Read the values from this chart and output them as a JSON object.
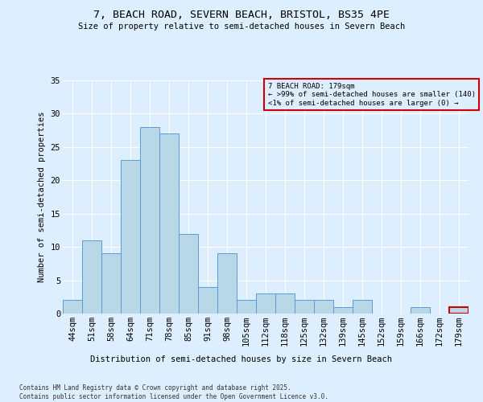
{
  "title_line1": "7, BEACH ROAD, SEVERN BEACH, BRISTOL, BS35 4PE",
  "title_line2": "Size of property relative to semi-detached houses in Severn Beach",
  "xlabel": "Distribution of semi-detached houses by size in Severn Beach",
  "ylabel": "Number of semi-detached properties",
  "categories": [
    "44sqm",
    "51sqm",
    "58sqm",
    "64sqm",
    "71sqm",
    "78sqm",
    "85sqm",
    "91sqm",
    "98sqm",
    "105sqm",
    "112sqm",
    "118sqm",
    "125sqm",
    "132sqm",
    "139sqm",
    "145sqm",
    "152sqm",
    "159sqm",
    "166sqm",
    "172sqm",
    "179sqm"
  ],
  "values": [
    2,
    11,
    9,
    23,
    28,
    27,
    12,
    4,
    9,
    2,
    3,
    3,
    2,
    2,
    1,
    2,
    0,
    0,
    1,
    0,
    1
  ],
  "bar_color": "#b8d8e8",
  "bar_edge_color": "#5b9bd5",
  "highlight_index": 20,
  "annotation_title": "7 BEACH ROAD: 179sqm",
  "annotation_line2": "← >99% of semi-detached houses are smaller (140)",
  "annotation_line3": "<1% of semi-detached houses are larger (0) →",
  "annotation_box_color": "#cc0000",
  "ylim": [
    0,
    35
  ],
  "yticks": [
    0,
    5,
    10,
    15,
    20,
    25,
    30,
    35
  ],
  "background_color": "#ddeeff",
  "grid_color": "#ffffff",
  "footer_line1": "Contains HM Land Registry data © Crown copyright and database right 2025.",
  "footer_line2": "Contains public sector information licensed under the Open Government Licence v3.0."
}
